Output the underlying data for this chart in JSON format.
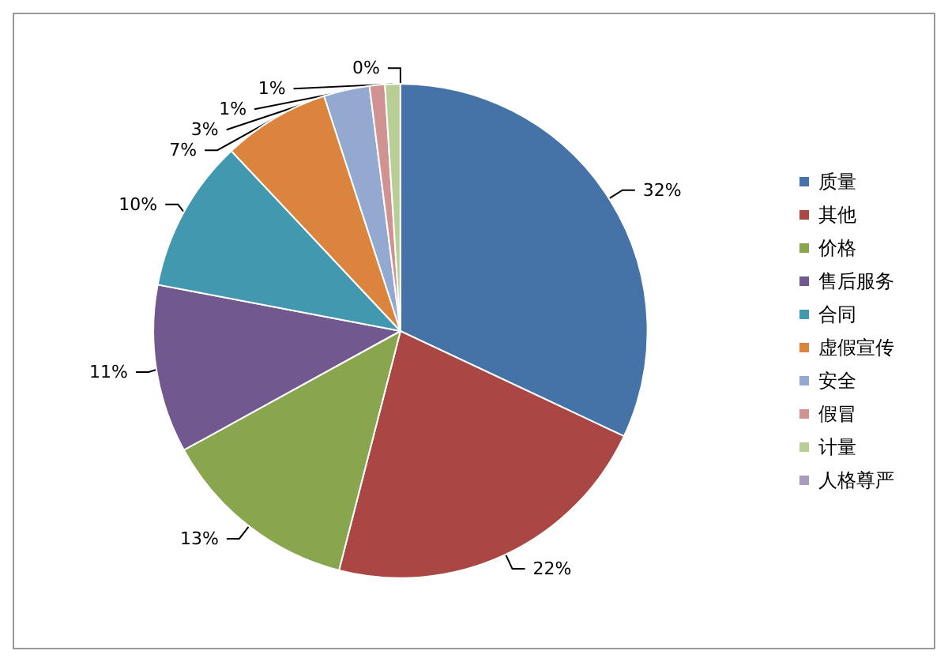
{
  "chart_data": {
    "type": "pie",
    "categories": [
      "质量",
      "其他",
      "价格",
      "售后服务",
      "合同",
      "虚假宣传",
      "安全",
      "假冒",
      "计量",
      "人格尊严"
    ],
    "values": [
      32,
      22,
      13,
      11,
      10,
      7,
      3,
      1,
      1,
      0
    ],
    "value_labels": [
      "32%",
      "22%",
      "13%",
      "11%",
      "10%",
      "7%",
      "3%",
      "1%",
      "1%",
      "0%"
    ],
    "colors": [
      "#4572a7",
      "#aa4643",
      "#89a54e",
      "#71588f",
      "#4198af",
      "#db843d",
      "#93a9cf",
      "#d19392",
      "#b9cd96",
      "#a99bbd"
    ],
    "legend": "right"
  }
}
